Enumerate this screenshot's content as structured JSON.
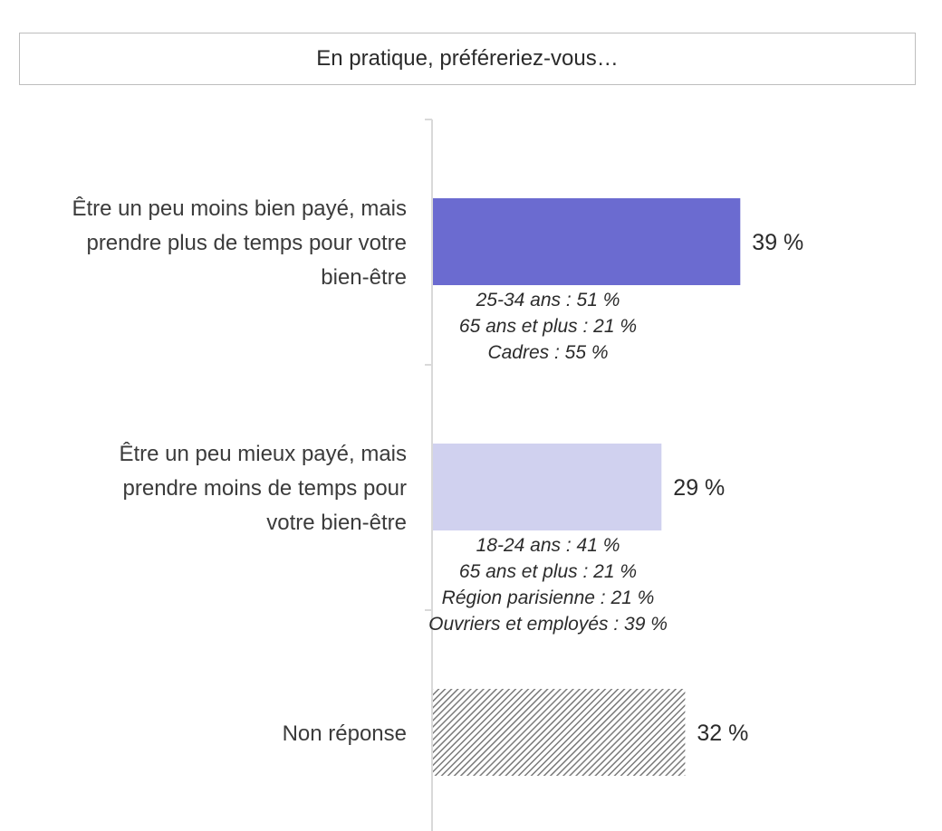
{
  "question": "En pratique, préféreriez-vous…",
  "colors": {
    "bar_primary": "#6b6bd0",
    "bar_secondary": "#d0d1ef",
    "bar_nonresponse_hatch": "#7a7a7a",
    "axis": "#d9d9d9"
  },
  "chart_data": {
    "type": "bar",
    "orientation": "horizontal",
    "title": "",
    "xlabel": "",
    "ylabel": "",
    "xlim": [
      0,
      100
    ],
    "grid": false,
    "categories": [
      [
        "Être un peu moins bien payé, mais",
        "prendre plus de temps pour votre",
        "bien-être"
      ],
      [
        "Être un peu mieux payé, mais",
        "prendre moins de temps pour",
        "votre bien-être"
      ],
      [
        "Non réponse"
      ]
    ],
    "values": [
      39,
      29,
      32
    ],
    "value_labels": [
      "39 %",
      "29 %",
      "32 %"
    ],
    "fills": [
      "primary",
      "secondary",
      "hatched"
    ],
    "details": [
      [
        "25-34 ans : 51 %",
        "65 ans et plus : 21 %",
        "Cadres : 55 %"
      ],
      [
        "18-24 ans : 41 %",
        "65 ans et plus : 21 %",
        "Région parisienne : 21 %",
        "Ouvriers et employés : 39 %"
      ],
      []
    ]
  }
}
